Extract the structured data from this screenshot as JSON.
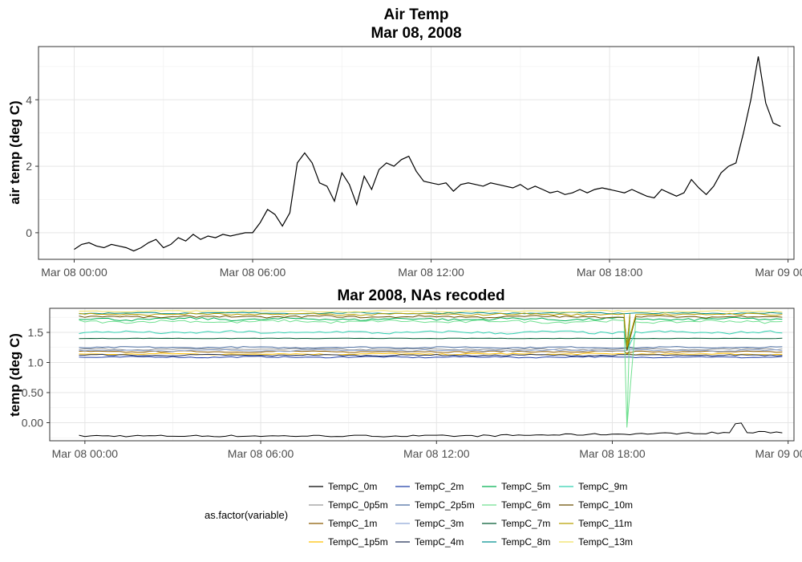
{
  "chart_data": [
    {
      "type": "line",
      "title": "Air Temp",
      "subtitle": "Mar 08, 2008",
      "xlabel": "",
      "ylabel": "air temp (deg C)",
      "x_range": [
        "2008-03-08 00:00",
        "2008-03-09 00:00"
      ],
      "x_ticks": [
        "Mar 08 00:00",
        "Mar 08 06:00",
        "Mar 08 12:00",
        "Mar 08 18:00",
        "Mar 09 00:00"
      ],
      "ylim": [
        -0.8,
        5.6
      ],
      "y_ticks": [
        0,
        2,
        4
      ],
      "grid": true,
      "series": [
        {
          "color": "#000000",
          "x": [
            0.0,
            0.25,
            0.5,
            0.75,
            1.0,
            1.25,
            1.5,
            1.75,
            2.0,
            2.25,
            2.5,
            2.75,
            3.0,
            3.25,
            3.5,
            3.75,
            4.0,
            4.25,
            4.5,
            4.75,
            5.0,
            5.25,
            5.5,
            5.75,
            6.0,
            6.25,
            6.5,
            6.75,
            7.0,
            7.25,
            7.5,
            7.75,
            8.0,
            8.25,
            8.5,
            8.75,
            9.0,
            9.25,
            9.5,
            9.75,
            10.0,
            10.25,
            10.5,
            10.75,
            11.0,
            11.25,
            11.5,
            11.75,
            12.0,
            12.25,
            12.5,
            12.75,
            13.0,
            13.25,
            13.5,
            13.75,
            14.0,
            14.25,
            14.5,
            14.75,
            15.0,
            15.25,
            15.5,
            15.75,
            16.0,
            16.25,
            16.5,
            16.75,
            17.0,
            17.25,
            17.5,
            17.75,
            18.0,
            18.25,
            18.5,
            18.75,
            19.0,
            19.25,
            19.5,
            19.75,
            20.0,
            20.25,
            20.5,
            20.75,
            21.0,
            21.25,
            21.5,
            21.75,
            22.0,
            22.25,
            22.5,
            22.75,
            23.0,
            23.25,
            23.5,
            23.75
          ],
          "y": [
            -0.5,
            -0.35,
            -0.3,
            -0.4,
            -0.45,
            -0.35,
            -0.4,
            -0.45,
            -0.55,
            -0.45,
            -0.3,
            -0.2,
            -0.45,
            -0.35,
            -0.15,
            -0.25,
            -0.05,
            -0.2,
            -0.1,
            -0.15,
            -0.05,
            -0.1,
            -0.05,
            0.0,
            0.0,
            0.3,
            0.7,
            0.55,
            0.2,
            0.6,
            2.1,
            2.4,
            2.1,
            1.5,
            1.4,
            0.95,
            1.8,
            1.45,
            0.85,
            1.7,
            1.3,
            1.9,
            2.1,
            2.0,
            2.2,
            2.3,
            1.85,
            1.55,
            1.5,
            1.45,
            1.5,
            1.25,
            1.45,
            1.5,
            1.45,
            1.4,
            1.5,
            1.45,
            1.4,
            1.35,
            1.45,
            1.3,
            1.4,
            1.3,
            1.2,
            1.25,
            1.15,
            1.2,
            1.3,
            1.2,
            1.3,
            1.35,
            1.3,
            1.25,
            1.2,
            1.3,
            1.2,
            1.1,
            1.05,
            1.3,
            1.2,
            1.1,
            1.2,
            1.6,
            1.35,
            1.15,
            1.4,
            1.8,
            2.0,
            2.1,
            3.0,
            4.0,
            5.3,
            3.9,
            3.3,
            3.2
          ]
        }
      ]
    },
    {
      "type": "line",
      "title": "Mar 2008, NAs recoded",
      "xlabel": "",
      "ylabel": "temp (deg C)",
      "x_range": [
        "2008-03-08 00:00",
        "2008-03-09 00:00"
      ],
      "x_ticks": [
        "Mar 08 00:00",
        "Mar 08 06:00",
        "Mar 08 12:00",
        "Mar 08 18:00",
        "Mar 09 00:00"
      ],
      "ylim": [
        -0.3,
        1.9
      ],
      "y_ticks": [
        "0.00",
        "0.50",
        "1.0",
        "1.5"
      ],
      "grid": true,
      "legend": {
        "title": "as.factor(variable)",
        "position": "bottom"
      },
      "series": [
        {
          "name": "TempC_0m",
          "color": "#000000",
          "level": -0.22,
          "dip_to": null,
          "noise": 0.03
        },
        {
          "name": "TempC_0p5m",
          "color": "#999999",
          "level": 1.22,
          "dip_to": null,
          "noise": 0.01
        },
        {
          "name": "TempC_1m",
          "color": "#8b5a00",
          "level": 1.18,
          "dip_to": 1.15,
          "noise": 0.01
        },
        {
          "name": "TempC_1p5m",
          "color": "#ffc000",
          "level": 1.14,
          "dip_to": null,
          "noise": 0.01
        },
        {
          "name": "TempC_2m",
          "color": "#1f3fa8",
          "level": 1.09,
          "dip_to": null,
          "noise": 0.01
        },
        {
          "name": "TempC_2p5m",
          "color": "#4a6ca0",
          "level": 1.25,
          "dip_to": null,
          "noise": 0.01
        },
        {
          "name": "TempC_3m",
          "color": "#8fa8d8",
          "level": 1.2,
          "dip_to": null,
          "noise": 0.01
        },
        {
          "name": "TempC_4m",
          "color": "#233058",
          "level": 1.12,
          "dip_to": null,
          "noise": 0.01
        },
        {
          "name": "TempC_5m",
          "color": "#00b050",
          "level": 1.72,
          "dip_to": 1.3,
          "noise": 0.02
        },
        {
          "name": "TempC_6m",
          "color": "#70e090",
          "level": 1.68,
          "dip_to": -0.08,
          "noise": 0.02
        },
        {
          "name": "TempC_7m",
          "color": "#005a30",
          "level": 1.4,
          "dip_to": null,
          "noise": 0.003
        },
        {
          "name": "TempC_8m",
          "color": "#009090",
          "level": 1.82,
          "dip_to": null,
          "noise": 0.01
        },
        {
          "name": "TempC_9m",
          "color": "#30d0b0",
          "level": 1.5,
          "dip_to": 1.2,
          "noise": 0.02
        },
        {
          "name": "TempC_10m",
          "color": "#6b4e00",
          "level": 1.76,
          "dip_to": 1.2,
          "noise": 0.015
        },
        {
          "name": "TempC_11m",
          "color": "#b8a000",
          "level": 1.8,
          "dip_to": 1.25,
          "noise": 0.015
        },
        {
          "name": "TempC_13m",
          "color": "#f0e060",
          "level": 1.85,
          "dip_to": null,
          "noise": 0.01
        }
      ]
    }
  ]
}
